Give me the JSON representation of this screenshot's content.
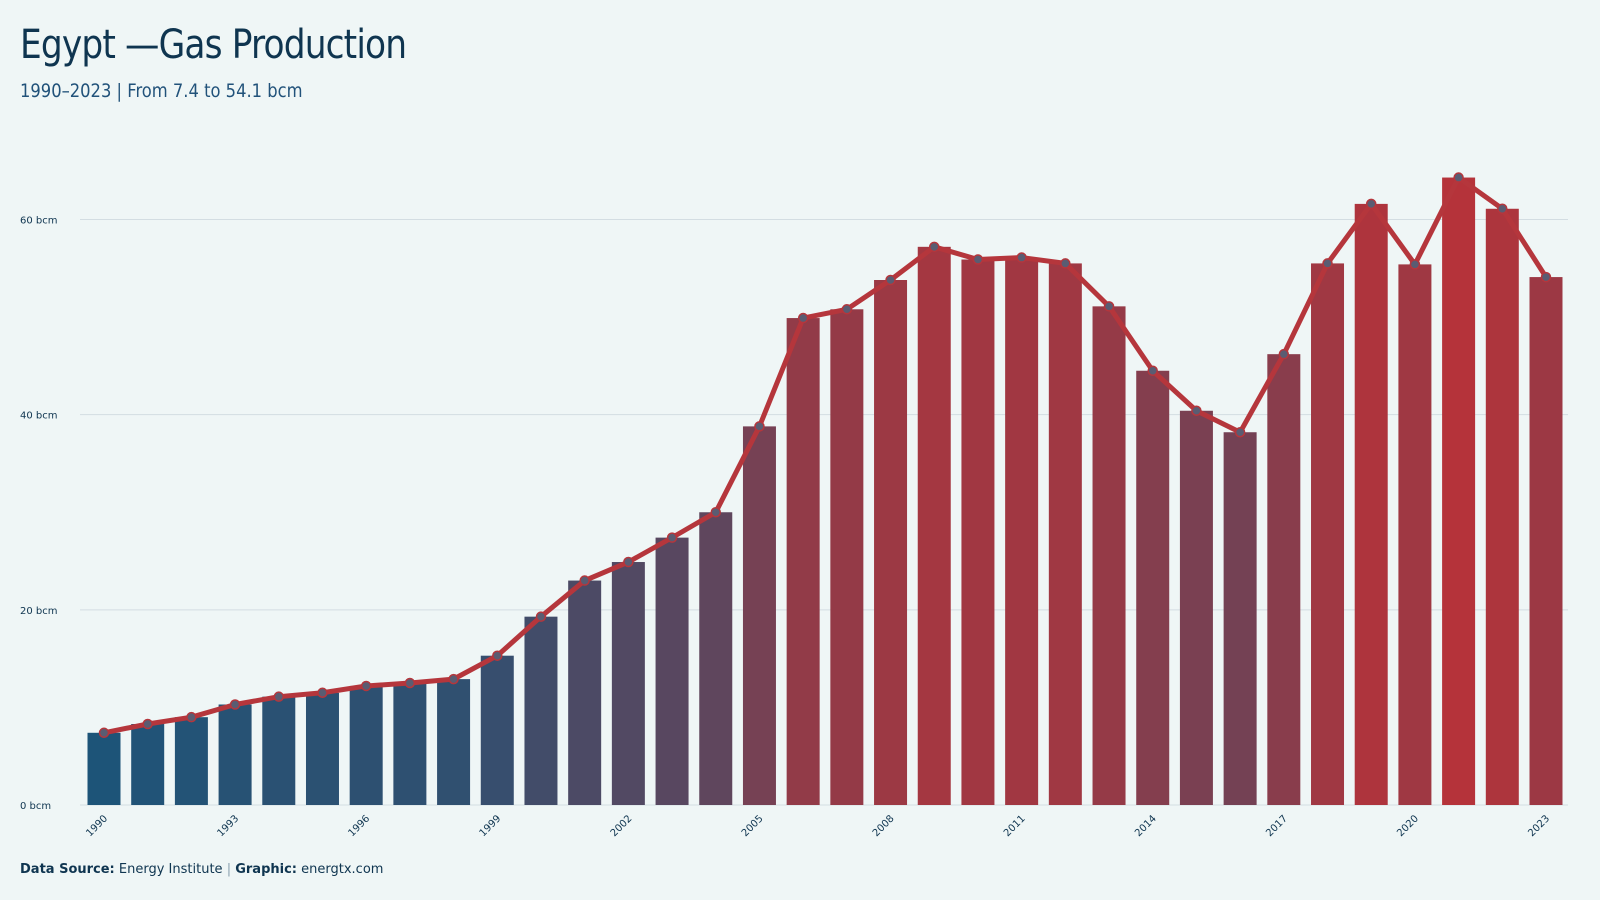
{
  "header": {
    "title": "Egypt —Gas Production",
    "subtitle": "1990–2023 | From 7.4 to 54.1 bcm"
  },
  "footer": {
    "source_label": "Data Source:",
    "source_value": "Energy Institute",
    "separator": "|",
    "graphic_label": "Graphic:",
    "graphic_value": "energtx.com"
  },
  "colors": {
    "background": "#eff6f6",
    "line": "#b5363c",
    "low": "#1d5478",
    "high": "#b5333a",
    "grid": "#d3dde2",
    "point_fill": "#5a5c72"
  },
  "chart_data": {
    "type": "bar",
    "x": [
      1990,
      1991,
      1992,
      1993,
      1994,
      1995,
      1996,
      1997,
      1998,
      1999,
      2000,
      2001,
      2002,
      2003,
      2004,
      2005,
      2006,
      2007,
      2008,
      2009,
      2010,
      2011,
      2012,
      2013,
      2014,
      2015,
      2016,
      2017,
      2018,
      2019,
      2020,
      2021,
      2022,
      2023
    ],
    "values": [
      7.4,
      8.3,
      9.0,
      10.3,
      11.1,
      11.5,
      12.2,
      12.5,
      12.9,
      15.3,
      19.3,
      23.0,
      24.9,
      27.4,
      30.0,
      38.8,
      49.9,
      50.8,
      53.8,
      57.2,
      55.9,
      56.1,
      55.5,
      51.1,
      44.5,
      40.4,
      38.2,
      46.2,
      55.5,
      61.6,
      55.4,
      64.3,
      61.1,
      54.1
    ],
    "series": [
      {
        "type": "bar",
        "values_ref": "values"
      },
      {
        "type": "line",
        "values_ref": "values"
      }
    ],
    "xticks": [
      "1990",
      "1993",
      "1996",
      "1999",
      "2002",
      "2005",
      "2008",
      "2011",
      "2014",
      "2017",
      "2020",
      "2023"
    ],
    "yticks": [
      "0 bcm",
      "20 bcm",
      "40 bcm",
      "60 bcm"
    ],
    "ytick_values": [
      0,
      20,
      40,
      60
    ],
    "ylim": [
      0,
      68
    ],
    "grid": "horizontal",
    "legend": "none"
  }
}
